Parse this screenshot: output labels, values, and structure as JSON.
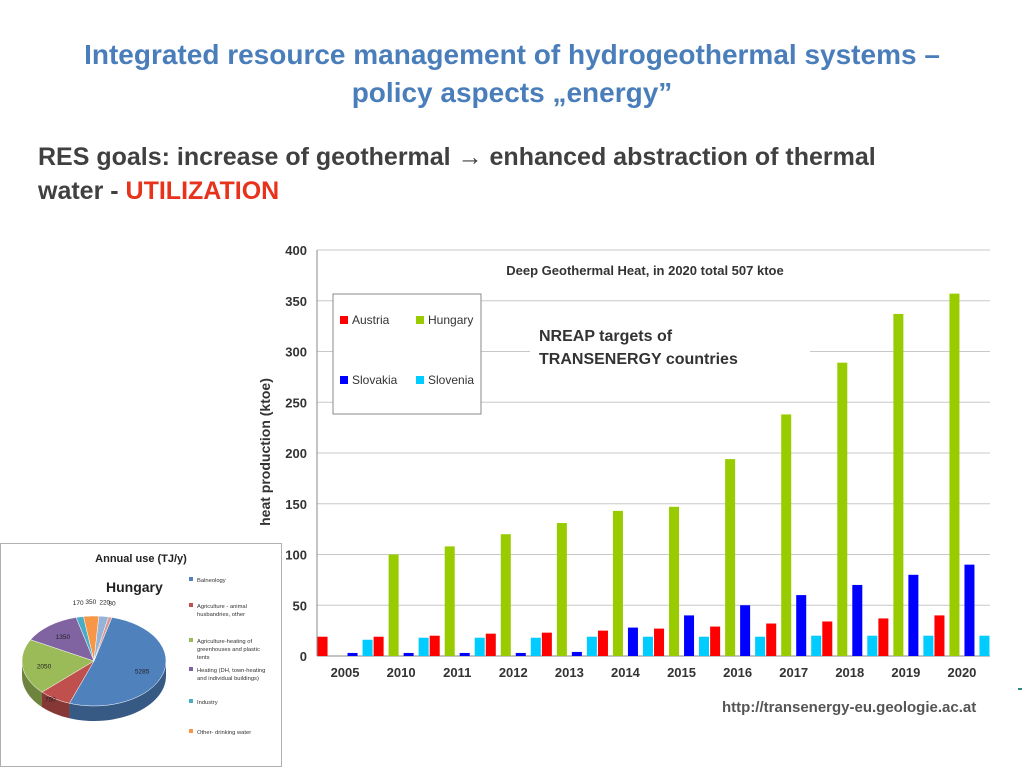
{
  "slide": {
    "title": "Integrated resource management  of hydrogeothermal systems – policy aspects „energy”",
    "subtitle_main": "RES goals: increase of geothermal → enhanced abstraction of thermal water  -  ",
    "subtitle_highlight": "UTILIZATION",
    "source_url": "http://transenergy-eu.geologie.ac.at",
    "annotation": [
      "NREAP targets of",
      "TRANSENERGY countries"
    ]
  },
  "chart_data": [
    {
      "type": "bar",
      "title": "Deep Geothermal Heat, in 2020 total 507 ktoe",
      "xlabel": "",
      "ylabel": "heat production (ktoe)",
      "ylim": [
        0,
        400
      ],
      "yticks": [
        0,
        50,
        100,
        150,
        200,
        250,
        300,
        350,
        400
      ],
      "grid": true,
      "legend_position": "top-left",
      "categories": [
        "2005",
        "2010",
        "2011",
        "2012",
        "2013",
        "2014",
        "2015",
        "2016",
        "2017",
        "2018",
        "2019",
        "2020"
      ],
      "series": [
        {
          "name": "Austria",
          "color": "#ff0000",
          "values": [
            19,
            19,
            20,
            22,
            23,
            25,
            27,
            29,
            32,
            34,
            37,
            40
          ]
        },
        {
          "name": "Hungary",
          "color": "#99cc00",
          "values": [
            0,
            100,
            108,
            120,
            131,
            143,
            147,
            194,
            238,
            289,
            337,
            357
          ]
        },
        {
          "name": "Slovakia",
          "color": "#0000ff",
          "values": [
            3,
            3,
            3,
            3,
            4,
            28,
            40,
            50,
            60,
            70,
            80,
            90
          ]
        },
        {
          "name": "Slovenia",
          "color": "#00ccff",
          "values": [
            16,
            18,
            18,
            18,
            19,
            19,
            19,
            19,
            20,
            20,
            20,
            20
          ]
        }
      ]
    },
    {
      "type": "pie",
      "title": "Annual use (TJ/y)",
      "label": "Hungary",
      "legend_position": "right",
      "slices": [
        {
          "name": "Balneology",
          "value": 5285,
          "label": "5285",
          "color": "#4f81bd"
        },
        {
          "name": "Agriculture - animal husbandries, other",
          "value": 750,
          "label": "750",
          "color": "#c0504d"
        },
        {
          "name": "Agriculture-heating of greenhouses and plastic tents",
          "value": 2050,
          "label": "2050",
          "color": "#9bbb59"
        },
        {
          "name": "Heating (DH, town-heating and individual buildings)",
          "value": 1350,
          "label": "1350",
          "color": "#8064a2"
        },
        {
          "name": "Industry",
          "value": 170,
          "label": "170",
          "color": "#4bacc6"
        },
        {
          "name": "Other- drinking water",
          "value": 350,
          "label": "350",
          "color": "#f79646"
        },
        {
          "name": "",
          "value": 220,
          "label": "220",
          "color": "#95b3d7"
        },
        {
          "name": "",
          "value": 80,
          "label": "80",
          "color": "#d99694"
        }
      ]
    }
  ]
}
